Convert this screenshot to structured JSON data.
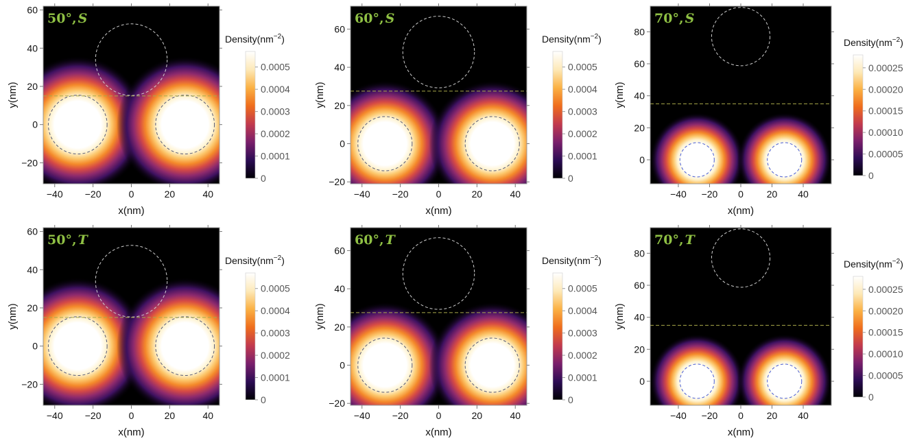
{
  "chart_data": [
    {
      "type": "heatmap",
      "label_prefix": "50°,",
      "label_state": "S",
      "xlabel": "x(nm)",
      "ylabel": "y(nm)",
      "xlim": [
        -46,
        46
      ],
      "ylim": [
        -31,
        62
      ],
      "xticks": [
        -40,
        -20,
        0,
        20,
        40
      ],
      "yticks": [
        -20,
        0,
        20,
        40,
        60
      ],
      "colorbar": {
        "title": "Density(nm",
        "title_exp": "−2",
        "title_end": ")",
        "max": 0.00057,
        "ticks": [
          0,
          0.0001,
          0.0002,
          0.0003,
          0.0004,
          0.0005
        ],
        "tick_labels": [
          "0",
          "0.0001",
          "0.0002",
          "0.0003",
          "0.0004",
          "0.0005"
        ]
      },
      "blobs": [
        {
          "x": -28,
          "y": 0,
          "r": 13
        },
        {
          "x": 28,
          "y": 0,
          "r": 13
        }
      ],
      "circle": {
        "x": 0,
        "y": 34,
        "r": 17
      },
      "dashed_line_y": 15
    },
    {
      "type": "heatmap",
      "label_prefix": "60°,",
      "label_state": "S",
      "xlabel": "x(nm)",
      "ylabel": "y(nm)",
      "xlim": [
        -46,
        46
      ],
      "ylim": [
        -21,
        72
      ],
      "xticks": [
        -40,
        -20,
        0,
        20,
        40
      ],
      "yticks": [
        -20,
        0,
        20,
        40,
        60
      ],
      "colorbar": {
        "title": "Density(nm",
        "title_exp": "−2",
        "title_end": ")",
        "max": 0.00057,
        "ticks": [
          0,
          0.0001,
          0.0002,
          0.0003,
          0.0004,
          0.0005
        ],
        "tick_labels": [
          "0",
          "0.0001",
          "0.0002",
          "0.0003",
          "0.0004",
          "0.0005"
        ]
      },
      "blobs": [
        {
          "x": -28,
          "y": 0,
          "r": 12
        },
        {
          "x": 28,
          "y": 0,
          "r": 12
        }
      ],
      "circle": {
        "x": 0,
        "y": 48,
        "r": 17
      },
      "dashed_line_y": 27.5
    },
    {
      "type": "heatmap",
      "label_prefix": "70°,",
      "label_state": "S",
      "xlabel": "x(nm)",
      "ylabel": "y(nm)",
      "xlim": [
        -58,
        58
      ],
      "ylim": [
        -15,
        96
      ],
      "xticks": [
        -40,
        -20,
        0,
        20,
        40
      ],
      "yticks": [
        0,
        20,
        40,
        60,
        80
      ],
      "colorbar": {
        "title": "Density(nm",
        "title_exp": "−2",
        "title_end": ")",
        "max": 0.00028,
        "ticks": [
          0,
          5e-05,
          0.0001,
          0.00015,
          0.0002,
          0.00025
        ],
        "tick_labels": [
          "0",
          "0.00005",
          "0.00010",
          "0.00015",
          "0.00020",
          "0.00025"
        ]
      },
      "blobs": [
        {
          "x": -28,
          "y": 0,
          "r": 11
        },
        {
          "x": 28,
          "y": 0,
          "r": 11
        }
      ],
      "circle": {
        "x": 0,
        "y": 77,
        "r": 17
      },
      "dashed_line_y": 35
    },
    {
      "type": "heatmap",
      "label_prefix": "50°,",
      "label_state": "T",
      "xlabel": "x(nm)",
      "ylabel": "y(nm)",
      "xlim": [
        -46,
        46
      ],
      "ylim": [
        -31,
        62
      ],
      "xticks": [
        -40,
        -20,
        0,
        20,
        40
      ],
      "yticks": [
        -20,
        0,
        20,
        40,
        60
      ],
      "colorbar": {
        "title": "Density(nm",
        "title_exp": "−2",
        "title_end": ")",
        "max": 0.00057,
        "ticks": [
          0,
          0.0001,
          0.0002,
          0.0003,
          0.0004,
          0.0005
        ],
        "tick_labels": [
          "0",
          "0.0001",
          "0.0002",
          "0.0003",
          "0.0004",
          "0.0005"
        ]
      },
      "blobs": [
        {
          "x": -28,
          "y": 0,
          "r": 13
        },
        {
          "x": 28,
          "y": 0,
          "r": 13
        }
      ],
      "circle": {
        "x": 0,
        "y": 34,
        "r": 17
      },
      "dashed_line_y": 15
    },
    {
      "type": "heatmap",
      "label_prefix": "60°,",
      "label_state": "T",
      "xlabel": "x(nm)",
      "ylabel": "y(nm)",
      "xlim": [
        -46,
        46
      ],
      "ylim": [
        -21,
        72
      ],
      "xticks": [
        -40,
        -20,
        0,
        20,
        40
      ],
      "yticks": [
        -20,
        0,
        20,
        40,
        60
      ],
      "colorbar": {
        "title": "Density(nm",
        "title_exp": "−2",
        "title_end": ")",
        "max": 0.00057,
        "ticks": [
          0,
          0.0001,
          0.0002,
          0.0003,
          0.0004,
          0.0005
        ],
        "tick_labels": [
          "0",
          "0.0001",
          "0.0002",
          "0.0003",
          "0.0004",
          "0.0005"
        ]
      },
      "blobs": [
        {
          "x": -28,
          "y": 0,
          "r": 12
        },
        {
          "x": 28,
          "y": 0,
          "r": 12
        }
      ],
      "circle": {
        "x": 0,
        "y": 48,
        "r": 17
      },
      "dashed_line_y": 27.5
    },
    {
      "type": "heatmap",
      "label_prefix": "70°,",
      "label_state": "T",
      "xlabel": "x(nm)",
      "ylabel": "y(nm)",
      "xlim": [
        -58,
        58
      ],
      "ylim": [
        -15,
        96
      ],
      "xticks": [
        -40,
        -20,
        0,
        20,
        40
      ],
      "yticks": [
        0,
        20,
        40,
        60,
        80
      ],
      "colorbar": {
        "title": "Density(nm",
        "title_exp": "−2",
        "title_end": ")",
        "max": 0.00028,
        "ticks": [
          0,
          5e-05,
          0.0001,
          0.00015,
          0.0002,
          0.00025
        ],
        "tick_labels": [
          "0",
          "0.00005",
          "0.00010",
          "0.00015",
          "0.00020",
          "0.00025"
        ]
      },
      "blobs": [
        {
          "x": -28,
          "y": 0,
          "r": 11
        },
        {
          "x": 28,
          "y": 0,
          "r": 11
        }
      ],
      "circle": {
        "x": 0,
        "y": 77,
        "r": 17
      },
      "dashed_line_y": 35
    }
  ],
  "colors": {
    "background": "#000000",
    "colormap": [
      "#000004",
      "#2c0c54",
      "#7a1f6b",
      "#c23a4d",
      "#ef6d1c",
      "#fbb144",
      "#fde9b8",
      "#ffffff"
    ],
    "panel_label": "#8fc044",
    "circle_top": "#cfcfcf",
    "circle_blob_deep": "#4a5fd6",
    "dashed_line": "#a9a94a"
  }
}
